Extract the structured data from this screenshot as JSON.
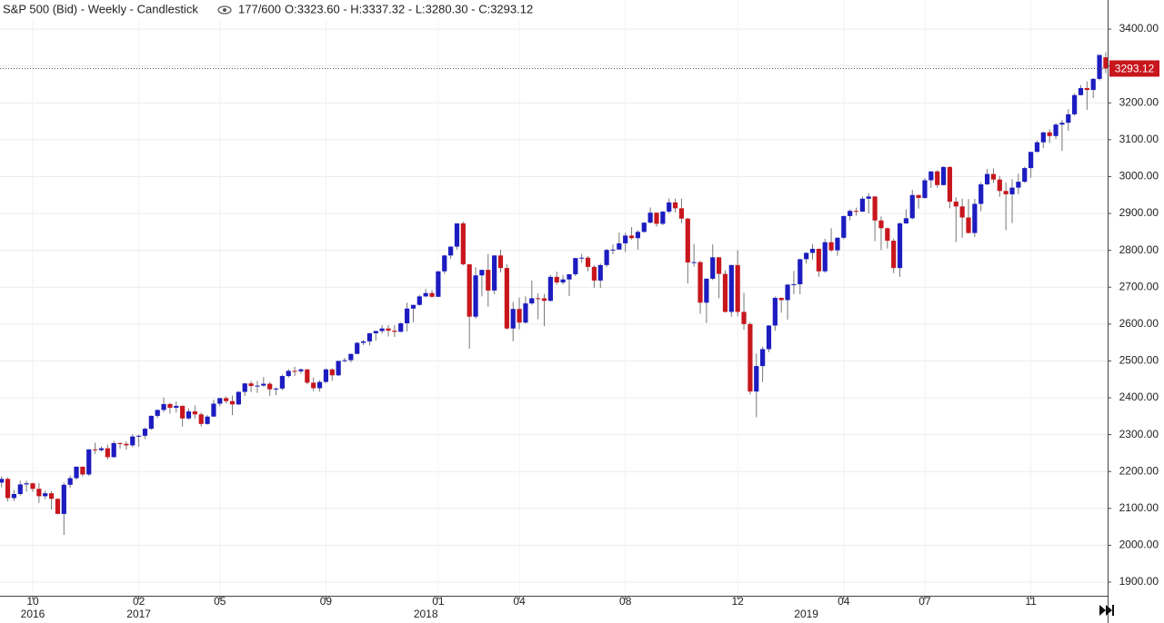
{
  "chart_data": {
    "type": "candlestick",
    "title": "S&P 500 (Bid) - Weekly - Candlestick",
    "bar_count": "177/600",
    "ohlc_readout": "O:3323.60 - H:3337.32 - L:3280.30 - C:3293.12",
    "last_price": 3293.12,
    "up_color": "#1c1cc0",
    "down_color": "#c8161d",
    "grid": true,
    "ylim": [
      1863,
      3479
    ],
    "yticks": [
      {
        "value": 1900,
        "label": "1900.00"
      },
      {
        "value": 2000,
        "label": "2000.00"
      },
      {
        "value": 2100,
        "label": "2100.00"
      },
      {
        "value": 2200,
        "label": "2200.00"
      },
      {
        "value": 2300,
        "label": "2300.00"
      },
      {
        "value": 2400,
        "label": "2400.00"
      },
      {
        "value": 2500,
        "label": "2500.00"
      },
      {
        "value": 2600,
        "label": "2600.00"
      },
      {
        "value": 2700,
        "label": "2700.00"
      },
      {
        "value": 2800,
        "label": "2800.00"
      },
      {
        "value": 2900,
        "label": "2900.00"
      },
      {
        "value": 3000,
        "label": "3000.00"
      },
      {
        "value": 3100,
        "label": "3100.00"
      },
      {
        "value": 3200,
        "label": "3200.00"
      },
      {
        "value": 3300,
        "label": "3300.00"
      },
      {
        "value": 3400,
        "label": "3400.00"
      }
    ],
    "categories": [
      null,
      null,
      null,
      null,
      null,
      "10",
      null,
      null,
      null,
      null,
      null,
      null,
      null,
      null,
      null,
      null,
      null,
      null,
      null,
      null,
      null,
      null,
      "02",
      null,
      null,
      null,
      null,
      null,
      null,
      null,
      null,
      null,
      null,
      null,
      null,
      "05",
      null,
      null,
      null,
      null,
      null,
      null,
      null,
      null,
      null,
      null,
      null,
      null,
      null,
      null,
      null,
      null,
      "09",
      null,
      null,
      null,
      null,
      null,
      null,
      null,
      null,
      null,
      null,
      null,
      null,
      null,
      null,
      null,
      null,
      null,
      "01",
      null,
      null,
      null,
      null,
      null,
      null,
      null,
      null,
      null,
      null,
      null,
      null,
      "04",
      null,
      null,
      null,
      null,
      null,
      null,
      null,
      null,
      null,
      null,
      null,
      null,
      null,
      null,
      null,
      null,
      "08",
      null,
      null,
      null,
      null,
      null,
      null,
      null,
      null,
      null,
      null,
      null,
      null,
      null,
      null,
      null,
      null,
      null,
      "12",
      null,
      null,
      null,
      null,
      null,
      null,
      null,
      null,
      null,
      null,
      null,
      null,
      null,
      null,
      null,
      null,
      "04",
      null,
      null,
      null,
      null,
      null,
      null,
      null,
      null,
      null,
      null,
      null,
      null,
      "07",
      null,
      null,
      null,
      null,
      null,
      null,
      null,
      null,
      null,
      null,
      null,
      null,
      null,
      null,
      null,
      null,
      "11",
      null,
      null,
      null,
      null,
      null,
      null,
      null,
      null,
      null,
      null,
      null,
      null
    ],
    "years": [
      null,
      null,
      null,
      null,
      null,
      "2016",
      null,
      null,
      null,
      null,
      null,
      null,
      null,
      null,
      null,
      null,
      null,
      null,
      null,
      null,
      null,
      null,
      "2017",
      null,
      null,
      null,
      null,
      null,
      null,
      null,
      null,
      null,
      null,
      null,
      null,
      null,
      null,
      null,
      null,
      null,
      null,
      null,
      null,
      null,
      null,
      null,
      null,
      null,
      null,
      null,
      null,
      null,
      null,
      null,
      null,
      null,
      null,
      null,
      null,
      null,
      null,
      null,
      null,
      null,
      null,
      null,
      null,
      null,
      "2018",
      null,
      null,
      null,
      null,
      null,
      null,
      null,
      null,
      null,
      null,
      null,
      null,
      null,
      null,
      null,
      null,
      null,
      null,
      null,
      null,
      null,
      null,
      null,
      null,
      null,
      null,
      null,
      null,
      null,
      null,
      null,
      null,
      null,
      null,
      null,
      null,
      null,
      null,
      null,
      null,
      null,
      null,
      null,
      null,
      null,
      null,
      null,
      null,
      null,
      null,
      null,
      null,
      null,
      null,
      null,
      null,
      null,
      null,
      null,
      null,
      "2019",
      null,
      null,
      null,
      null,
      null,
      null,
      null,
      null,
      null,
      null,
      null,
      null,
      null,
      null,
      null,
      null,
      null,
      null,
      null,
      null,
      null,
      null,
      null,
      null,
      null,
      null,
      null,
      null,
      null,
      null,
      null,
      null,
      null,
      null,
      null,
      null,
      null,
      null,
      null,
      null,
      null,
      null
    ],
    "open": [
      2170,
      2180,
      2128,
      2139,
      2165,
      2168,
      2153,
      2133,
      2141,
      2126,
      2085,
      2164,
      2182,
      2213,
      2192,
      2260,
      2258,
      2263,
      2239,
      2277,
      2275,
      2271,
      2295,
      2297,
      2316,
      2351,
      2367,
      2383,
      2373,
      2378,
      2344,
      2363,
      2355,
      2329,
      2349,
      2384,
      2399,
      2391,
      2382,
      2416,
      2439,
      2432,
      2433,
      2438,
      2423,
      2425,
      2459,
      2473,
      2472,
      2477,
      2441,
      2426,
      2443,
      2477,
      2461,
      2500,
      2502,
      2519,
      2549,
      2553,
      2575,
      2581,
      2588,
      2582,
      2579,
      2602,
      2642,
      2652,
      2675,
      2684,
      2674,
      2743,
      2786,
      2810,
      2873,
      2762,
      2620,
      2732,
      2747,
      2691,
      2786,
      2752,
      2588,
      2641,
      2604,
      2656,
      2670,
      2669.9,
      2663,
      2728,
      2713,
      2721,
      2735,
      2779,
      2780,
      2755,
      2718,
      2760,
      2801,
      2802,
      2819,
      2840,
      2833,
      2850,
      2875,
      2902,
      2872,
      2905,
      2930,
      2914,
      2886,
      2767,
      2768,
      2658,
      2723,
      2781,
      2736,
      2633,
      2760,
      2633,
      2600,
      2417,
      2486,
      2532,
      2596,
      2671,
      2665,
      2707,
      2708,
      2776,
      2793,
      2804,
      2743,
      2822,
      2800,
      2834,
      2893,
      2907,
      2905,
      2940,
      2946,
      2881,
      2860,
      2826,
      2752,
      2873,
      2887,
      2950,
      2942,
      2990,
      3014,
      2977,
      3026,
      2932,
      2919,
      2889,
      2847,
      2926,
      2979,
      3007,
      2992,
      2961,
      2952,
      2970,
      2986,
      3023,
      3067,
      3093,
      3120,
      3110,
      3141,
      3146,
      3169,
      3221,
      3240,
      3235,
      3265,
      3323.6
    ],
    "high": [
      2187,
      2184,
      2150,
      2175,
      2175,
      2170,
      2169,
      2148,
      2147,
      2127,
      2170,
      2189,
      2214,
      2214,
      2260,
      2278,
      2268,
      2273,
      2283,
      2280,
      2282,
      2301,
      2300,
      2319,
      2352,
      2368,
      2401,
      2386,
      2390,
      2380,
      2371,
      2379,
      2360,
      2353,
      2395,
      2400,
      2404,
      2406,
      2418,
      2440,
      2446,
      2446,
      2456,
      2443,
      2428,
      2463,
      2478,
      2484,
      2480,
      2478,
      2455,
      2448,
      2480,
      2480,
      2500,
      2508,
      2520,
      2552,
      2557,
      2576,
      2582,
      2597,
      2597,
      2597,
      2605,
      2658,
      2652,
      2679,
      2695,
      2692,
      2744,
      2787,
      2811,
      2873,
      2878,
      2763,
      2754,
      2747,
      2790,
      2787,
      2802,
      2762,
      2660,
      2672,
      2675,
      2718,
      2683,
      2682,
      2733,
      2742,
      2733,
      2736,
      2779,
      2790,
      2784,
      2760,
      2764,
      2804,
      2816,
      2848,
      2848,
      2863,
      2855,
      2876,
      2916,
      2903,
      2906,
      2941,
      2940,
      2940,
      2888,
      2817,
      2772,
      2724,
      2816,
      2782,
      2746,
      2761,
      2800,
      2685,
      2605,
      2520,
      2539,
      2597,
      2675,
      2672,
      2709,
      2744,
      2776,
      2795,
      2817,
      2805,
      2831,
      2860,
      2836,
      2894,
      2911,
      2916,
      2946,
      2955,
      2947,
      2892,
      2862,
      2832,
      2876,
      2911,
      2964,
      2951,
      2996,
      3014,
      3017,
      3028,
      3028,
      2944,
      2940,
      2939,
      2940,
      2985,
      3021,
      3022,
      3002,
      2984,
      2993,
      3008,
      3027,
      3067,
      3098,
      3121,
      3128,
      3145,
      3154,
      3183,
      3226,
      3248,
      3258,
      3267,
      3330,
      3337.32
    ],
    "low": [
      2157,
      2119,
      2120,
      2135,
      2145,
      2144,
      2115,
      2125,
      2097,
      2084,
      2028,
      2156,
      2178,
      2187,
      2188,
      2248,
      2254,
      2233,
      2238,
      2262,
      2259,
      2266,
      2267,
      2288,
      2313,
      2345,
      2361,
      2357,
      2360,
      2322,
      2341,
      2344,
      2322,
      2327,
      2348,
      2377,
      2385,
      2353,
      2380,
      2405,
      2415,
      2413,
      2430,
      2405,
      2407,
      2420,
      2455,
      2459,
      2466,
      2437,
      2418,
      2417,
      2440,
      2446,
      2459,
      2496,
      2496,
      2519,
      2543,
      2542,
      2555,
      2574,
      2566,
      2565,
      2578,
      2580,
      2605,
      2650,
      2673,
      2672,
      2673,
      2736,
      2777,
      2802,
      2759,
      2533,
      2614,
      2675,
      2647,
      2681,
      2740,
      2585,
      2553,
      2586,
      2601,
      2652,
      2613,
      2594,
      2661,
      2707,
      2707,
      2676,
      2730,
      2766,
      2743,
      2698,
      2698,
      2755,
      2789,
      2802,
      2795,
      2829,
      2802,
      2848,
      2873,
      2864,
      2868,
      2900,
      2903,
      2874,
      2710,
      2756,
      2628,
      2603,
      2719,
      2670,
      2631,
      2620,
      2621,
      2584,
      2409,
      2347,
      2443,
      2524,
      2582,
      2631,
      2612,
      2681,
      2681,
      2764,
      2775,
      2728,
      2739,
      2796,
      2785,
      2830,
      2881,
      2894,
      2904,
      2900,
      2825,
      2801,
      2805,
      2738,
      2728,
      2872,
      2884,
      2913,
      2940,
      2969,
      2970,
      2976,
      2914,
      2822,
      2834,
      2846,
      2836,
      2906,
      2977,
      2983,
      2945,
      2855,
      2874,
      2952,
      2983,
      2997,
      3066,
      3077,
      3091,
      3102,
      3070,
      3124,
      3165,
      3220,
      3181,
      3213,
      3261,
      3280.3
    ],
    "close": [
      2180,
      2128,
      2139,
      2165,
      2168,
      2153,
      2133,
      2141,
      2126,
      2085,
      2164,
      2182,
      2213,
      2192,
      2260,
      2258,
      2263,
      2239,
      2277,
      2275,
      2271,
      2295,
      2297,
      2316,
      2351,
      2367,
      2383,
      2373,
      2378,
      2344,
      2363,
      2355,
      2329,
      2349,
      2384,
      2399,
      2391,
      2382,
      2416,
      2439,
      2432,
      2433,
      2438,
      2423,
      2425,
      2459,
      2473,
      2472,
      2477,
      2441,
      2426,
      2443,
      2477,
      2461,
      2500,
      2502,
      2519,
      2549,
      2553,
      2575,
      2581,
      2588,
      2582,
      2579,
      2602,
      2642,
      2652,
      2675,
      2684,
      2674,
      2743,
      2786,
      2810,
      2873,
      2762,
      2620,
      2732,
      2747,
      2691,
      2786,
      2752,
      2588,
      2641,
      2604,
      2656,
      2670,
      2669.9,
      2663,
      2728,
      2713,
      2721,
      2735,
      2779,
      2780,
      2755,
      2718,
      2760,
      2801,
      2802,
      2819,
      2840,
      2833,
      2850,
      2875,
      2902,
      2872,
      2905,
      2930,
      2914,
      2886,
      2767,
      2768,
      2658,
      2723,
      2781,
      2736,
      2633,
      2760,
      2633,
      2600,
      2417,
      2486,
      2532,
      2596,
      2671,
      2665,
      2707,
      2708,
      2776,
      2793,
      2804,
      2743,
      2822,
      2800,
      2834,
      2893,
      2907,
      2905,
      2940,
      2946,
      2881,
      2860,
      2826,
      2752,
      2873,
      2887,
      2950,
      2942,
      2990,
      3014,
      2977,
      3026,
      2932,
      2919,
      2889,
      2847,
      2926,
      2979,
      3007,
      2992,
      2961,
      2952,
      2970,
      2986,
      3023,
      3067,
      3093,
      3120,
      3110,
      3141,
      3146,
      3169,
      3221,
      3240,
      3235,
      3265,
      3330,
      3293.12
    ]
  }
}
